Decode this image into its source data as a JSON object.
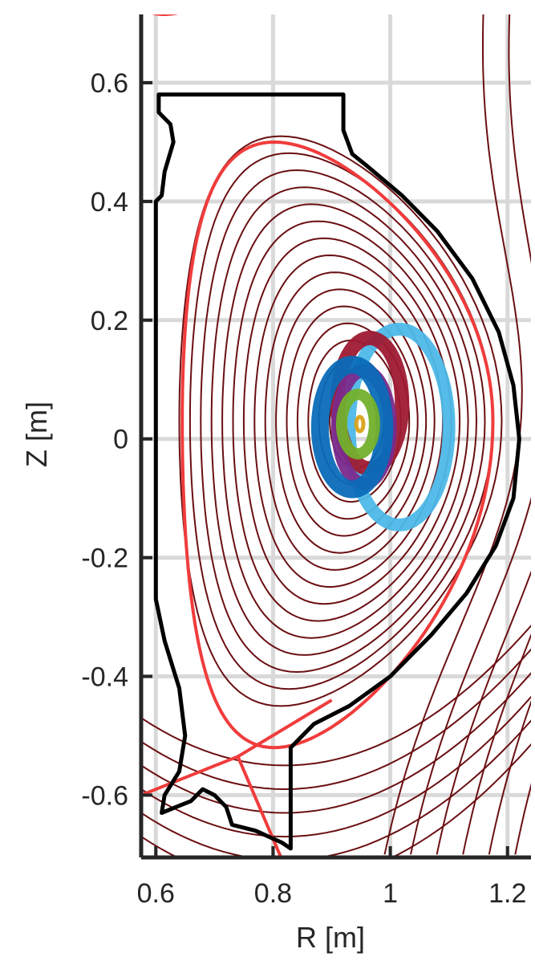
{
  "chart_data": {
    "type": "line",
    "title": "",
    "xlabel": "R [m]",
    "ylabel": "Z [m]",
    "xlim": [
      0.575,
      1.24
    ],
    "ylim": [
      -0.705,
      0.715
    ],
    "grid": true,
    "xticks": [
      0.6,
      0.8,
      1.0,
      1.2
    ],
    "xtick_labels": [
      "0.6",
      "0.8",
      "1",
      "1.2"
    ],
    "yticks": [
      0.6,
      0.4,
      0.2,
      0.0,
      -0.2,
      -0.4,
      -0.6
    ],
    "ytick_labels": [
      "0.6",
      "0.4",
      "0.2",
      "0",
      "-0.2",
      "-0.4",
      "-0.6"
    ],
    "colors": {
      "flux_contours": "#6b0f12",
      "separatrix": "#f03c3c",
      "wall": "#000000",
      "grid": "#d9d9d9",
      "orbits": [
        "#4db8e8",
        "#9e1a33",
        "#7a2a8c",
        "#0a6cb8",
        "#73b02b",
        "#d9a21a"
      ]
    },
    "magnetic_axis": {
      "R": 0.945,
      "Z": 0.03
    },
    "wall": [
      [
        0.605,
        0.58
      ],
      [
        0.92,
        0.58
      ],
      [
        0.92,
        0.52
      ],
      [
        0.935,
        0.48
      ],
      [
        0.96,
        0.46
      ],
      [
        1.02,
        0.41
      ],
      [
        1.08,
        0.35
      ],
      [
        1.14,
        0.27
      ],
      [
        1.185,
        0.18
      ],
      [
        1.21,
        0.09
      ],
      [
        1.22,
        0.0
      ],
      [
        1.21,
        -0.1
      ],
      [
        1.18,
        -0.18
      ],
      [
        1.13,
        -0.26
      ],
      [
        1.07,
        -0.33
      ],
      [
        1.0,
        -0.4
      ],
      [
        0.93,
        -0.45
      ],
      [
        0.87,
        -0.48
      ],
      [
        0.83,
        -0.52
      ],
      [
        0.83,
        -0.69
      ],
      [
        0.815,
        -0.68
      ],
      [
        0.77,
        -0.66
      ],
      [
        0.73,
        -0.65
      ],
      [
        0.72,
        -0.62
      ],
      [
        0.7,
        -0.6
      ],
      [
        0.68,
        -0.59
      ],
      [
        0.66,
        -0.61
      ],
      [
        0.635,
        -0.62
      ],
      [
        0.61,
        -0.63
      ],
      [
        0.615,
        -0.6
      ],
      [
        0.64,
        -0.56
      ],
      [
        0.65,
        -0.5
      ],
      [
        0.64,
        -0.42
      ],
      [
        0.615,
        -0.34
      ],
      [
        0.6,
        -0.27
      ],
      [
        0.6,
        0.4
      ],
      [
        0.61,
        0.41
      ],
      [
        0.615,
        0.45
      ],
      [
        0.63,
        0.5
      ],
      [
        0.625,
        0.53
      ],
      [
        0.605,
        0.55
      ],
      [
        0.605,
        0.58
      ]
    ],
    "orbits": [
      {
        "R0": 1.015,
        "Z0": 0.02,
        "a": 0.085,
        "b": 0.165,
        "color": "#4db8e8",
        "width": 16
      },
      {
        "R0": 0.965,
        "Z0": 0.06,
        "a": 0.055,
        "b": 0.11,
        "color": "#9e1a33",
        "width": 18
      },
      {
        "R0": 0.955,
        "Z0": 0.02,
        "a": 0.045,
        "b": 0.095,
        "color": "#7a2a8c",
        "width": 16
      },
      {
        "R0": 0.935,
        "Z0": 0.02,
        "a": 0.055,
        "b": 0.105,
        "color": "#0a6cb8",
        "width": 22
      },
      {
        "R0": 0.945,
        "Z0": 0.025,
        "a": 0.028,
        "b": 0.05,
        "color": "#73b02b",
        "width": 14
      },
      {
        "R0": 0.948,
        "Z0": 0.025,
        "a": 0.006,
        "b": 0.012,
        "color": "#d9a21a",
        "width": 5
      }
    ]
  }
}
